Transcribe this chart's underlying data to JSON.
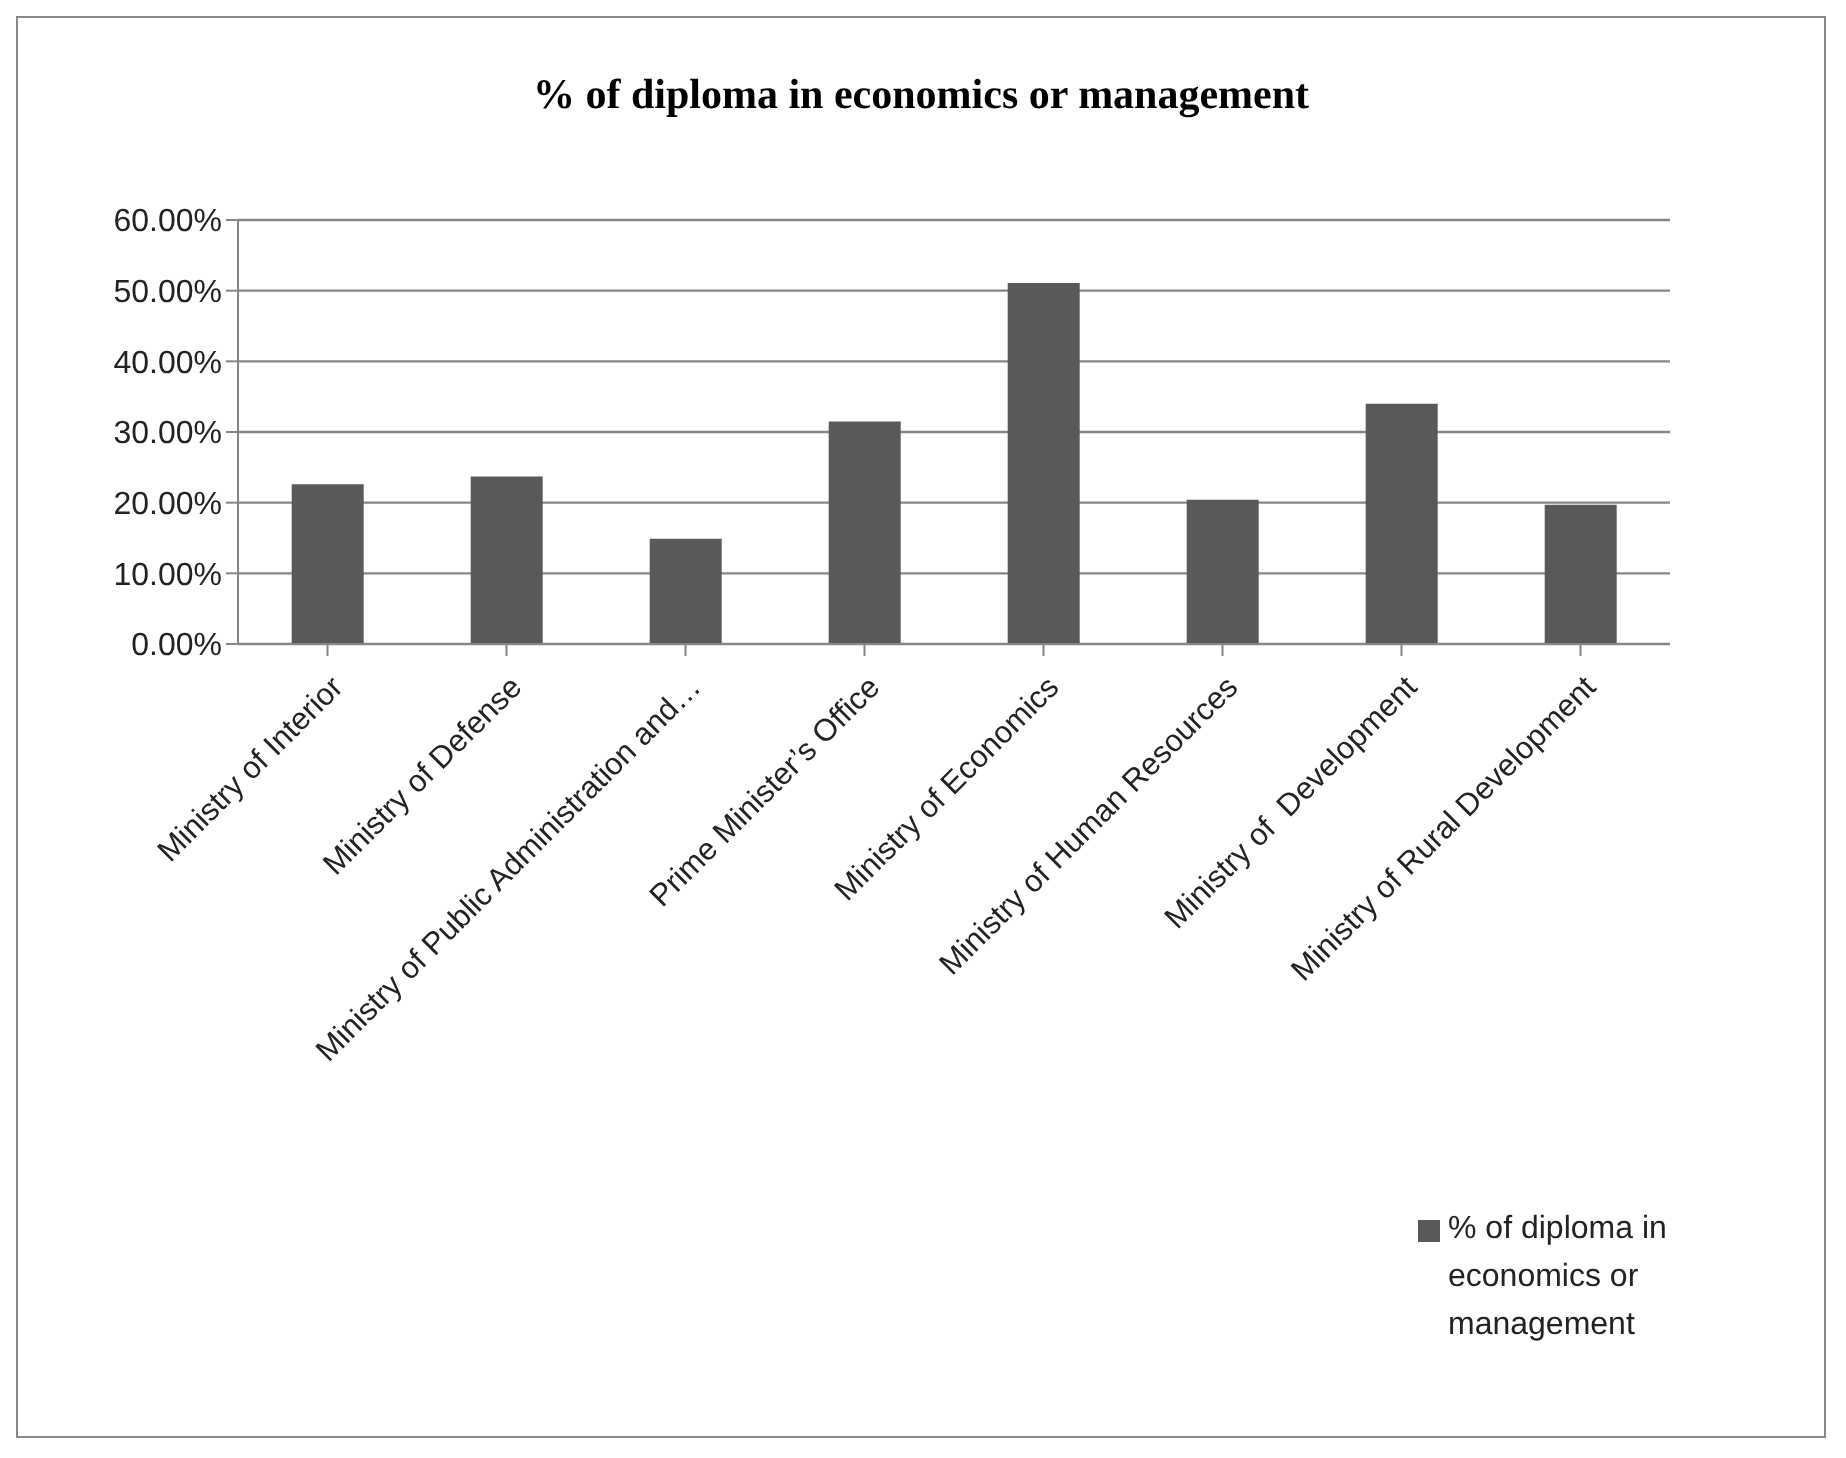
{
  "chart_data": {
    "type": "bar",
    "title": "% of diploma in economics or management",
    "categories": [
      "Ministry of Interior",
      "Ministry of Defense",
      "Ministry of Public Administration and…",
      "Prime Minister’s Office",
      "Ministry of Economics",
      "Ministry of Human Resources",
      "Ministry of  Development",
      "Ministry of Rural Development"
    ],
    "series": [
      {
        "name": "% of diploma in economics or management",
        "color": "#595959",
        "values": [
          22.6,
          23.7,
          14.9,
          31.5,
          51.1,
          20.4,
          34.0,
          19.7
        ]
      }
    ],
    "ylim": [
      0,
      60
    ],
    "yticks": [
      {
        "value": 0,
        "label": "0.00%"
      },
      {
        "value": 10,
        "label": "10.00%"
      },
      {
        "value": 20,
        "label": "20.00%"
      },
      {
        "value": 30,
        "label": "30.00%"
      },
      {
        "value": 40,
        "label": "40.00%"
      },
      {
        "value": 50,
        "label": "50.00%"
      },
      {
        "value": 60,
        "label": "60.00%"
      }
    ],
    "grid": "y",
    "legend": "bottom right"
  }
}
